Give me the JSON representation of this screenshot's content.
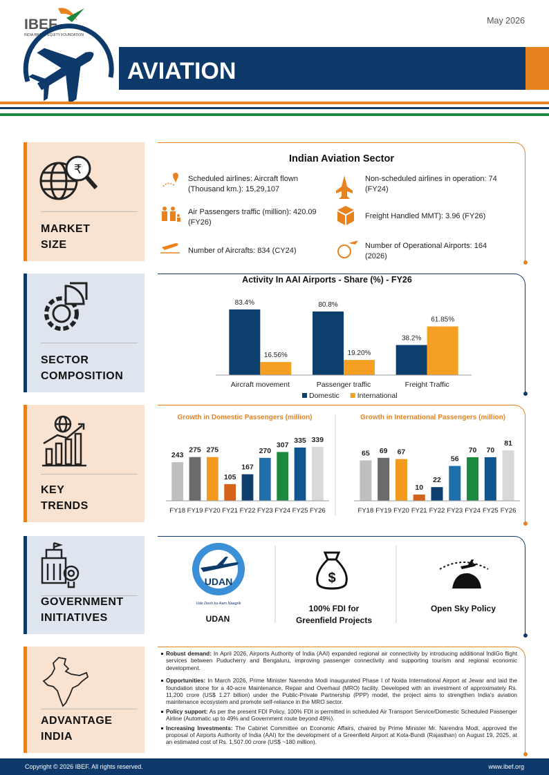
{
  "header": {
    "logo": "IBEF",
    "logo_tagline": "INDIA BRAND EQUITY FOUNDATION",
    "date": "May 2026",
    "title": "AVIATION"
  },
  "market_size": {
    "label": "MARKET\nSIZE",
    "heading": "Indian Aviation Sector",
    "items": [
      "Scheduled airlines: Aircraft flown (Thousand km.): 15,29,107",
      "Non-scheduled airlines in operation: 74 (FY24)",
      "Air Passengers traffic (million): 420.09 (FY26)",
      "Freight Handled MMT): 3.96 (FY26)",
      "Number of Aircrafts: 834 (CY24)",
      "Number of Operational Airports: 164 (2026)"
    ]
  },
  "sector_composition": {
    "label": "SECTOR\nCOMPOSITION"
  },
  "key_trends": {
    "label": "KEY\nTRENDS"
  },
  "government_initiatives": {
    "label": "GOVERNMENT\nINITIATIVES",
    "udan_logo": {
      "name": "UDAN",
      "tagline": "Ude Desh ka Aam Naagrik"
    },
    "items": [
      "UDAN",
      "100% FDI for\nGreenfield Projects",
      "Open Sky Policy"
    ]
  },
  "advantage_india": {
    "label": "ADVANTAGE\nINDIA",
    "points": [
      {
        "lead": "Robust demand:",
        "text": "In April 2026, Airports Authority of India (AAI) expanded regional air connectivity by introducing additional IndiGo flight services between Puducherry and Bengaluru, improving passenger connectivity and supporting tourism and regional economic development."
      },
      {
        "lead": "Opportunities:",
        "text": "In March 2026, Prime Minister Narendra Modi inaugurated Phase I of Noida International Airport at Jewar and laid the foundation stone for a 40-acre Maintenance, Repair and Overhaul (MRO) facility. Developed with an investment of approximately Rs. 11,200 crore (US$ 1.27 billion) under the Public-Private Partnership (PPP) model, the project aims to strengthen India's aviation maintenance ecosystem and promote self-reliance in the MRO sector."
      },
      {
        "lead": "Policy support:",
        "text": "As per the present FDI Policy, 100% FDI is permitted in scheduled Air Transport Service/Domestic Scheduled Passenger Airline (Automatic up to 49% and Government route beyond 49%)."
      },
      {
        "lead": "Increasing Investments:",
        "text": "The Cabinet Committee on Economic Affairs, chaired by Prime Minister Mr. Narendra Modi, approved the proposal of Airports Authority of India (AAI) for the development of a Greenfield Airport at Kota-Bundi (Rajasthan) on August 19, 2025, at an estimated cost of Rs. 1,507.00 crore (US$ ~180 million)."
      }
    ]
  },
  "footer": {
    "copyright": "Copyright © 2026 IBEF. All rights reserved.",
    "website": "www.ibef.org"
  },
  "chart_data": [
    {
      "type": "bar",
      "title": "Activity In AAI Airports - Share (%) - FY26",
      "categories": [
        "Aircraft movement",
        "Passenger traffic",
        "Freight Traffic"
      ],
      "series": [
        {
          "name": "Domestic",
          "color": "#0d3f6e",
          "values": [
            83.4,
            80.8,
            38.2
          ],
          "value_labels": [
            "83.4%",
            "80.8%",
            "38.2%"
          ]
        },
        {
          "name": "International",
          "color": "#f5a023",
          "values": [
            16.56,
            19.2,
            61.85
          ],
          "value_labels": [
            "16.56%",
            "19.20%",
            "61.85%"
          ]
        }
      ],
      "legend": "bottom"
    },
    {
      "type": "bar",
      "title": "Growth in Domestic Passengers (million)",
      "categories": [
        "FY18",
        "FY19",
        "FY20",
        "FY21",
        "FY22",
        "FY23",
        "FY24",
        "FY25",
        "FY26"
      ],
      "values": [
        243,
        275,
        275,
        105,
        167,
        270,
        307,
        335,
        339
      ],
      "colors": [
        "#bfbfbf",
        "#6b6b6b",
        "#f29a1f",
        "#d4621a",
        "#0e3f6e",
        "#1f6fad",
        "#1b8a3e",
        "#0f5690",
        "#d9d9d9"
      ]
    },
    {
      "type": "bar",
      "title": "Growth in International Passengers (million)",
      "categories": [
        "FY18",
        "FY19",
        "FY20",
        "FY21",
        "FY22",
        "FY23",
        "FY24",
        "FY25",
        "FY26"
      ],
      "values": [
        65,
        69,
        67,
        10,
        22,
        56,
        70,
        70,
        81
      ],
      "colors": [
        "#bfbfbf",
        "#6b6b6b",
        "#f29a1f",
        "#d4621a",
        "#0e3f6e",
        "#1f6fad",
        "#1b8a3e",
        "#0f5690",
        "#d9d9d9"
      ]
    }
  ]
}
